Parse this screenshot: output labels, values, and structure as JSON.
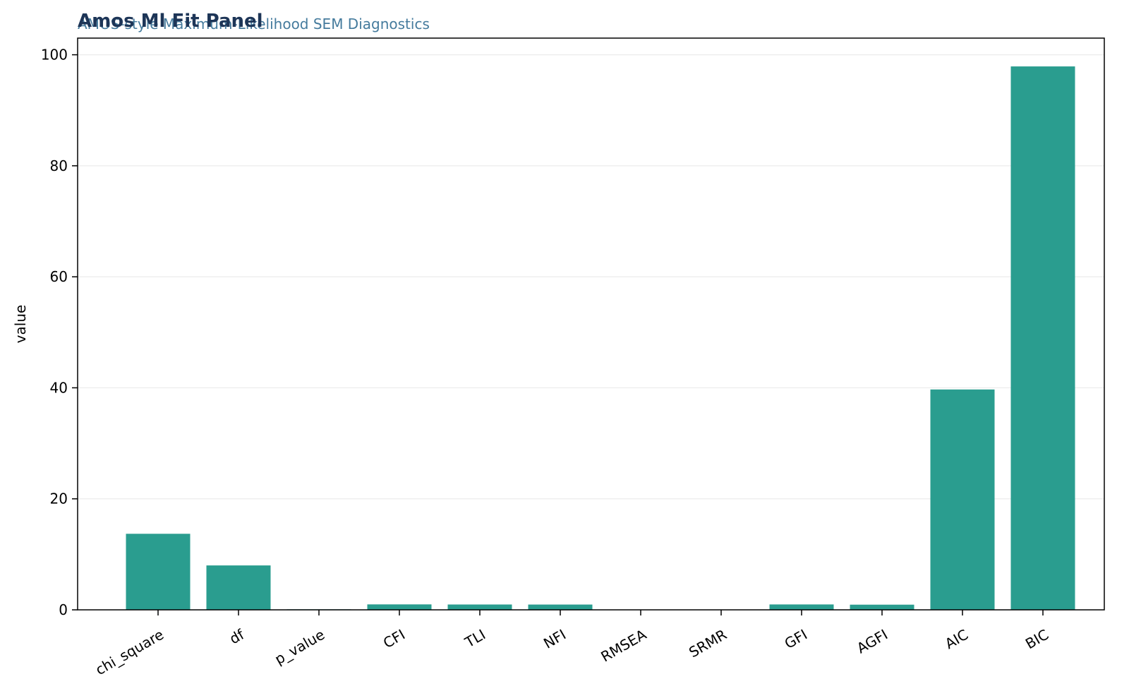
{
  "chart_data": {
    "type": "bar",
    "title": "Amos Ml Fit Panel",
    "subtitle": "AMOS-style Maximum-Likelihood SEM Diagnostics",
    "xlabel": "",
    "ylabel": "value",
    "categories": [
      "chi_square",
      "df",
      "p_value",
      "CFI",
      "TLI",
      "NFI",
      "RMSEA",
      "SRMR",
      "GFI",
      "AGFI",
      "AIC",
      "BIC"
    ],
    "values": [
      13.7,
      8,
      0.09,
      0.98,
      0.96,
      0.95,
      0.06,
      0.04,
      0.97,
      0.93,
      39.7,
      97.9
    ],
    "ylim": [
      0,
      103
    ],
    "yticks": [
      0,
      20,
      40,
      60,
      80,
      100
    ],
    "grid": "horizontal",
    "legend": "none",
    "colors": {
      "bar": "#2a9d8f",
      "title": "#1d3557",
      "subtitle": "#457b9d",
      "grid": "#ebebeb",
      "axis": "#000000"
    }
  }
}
